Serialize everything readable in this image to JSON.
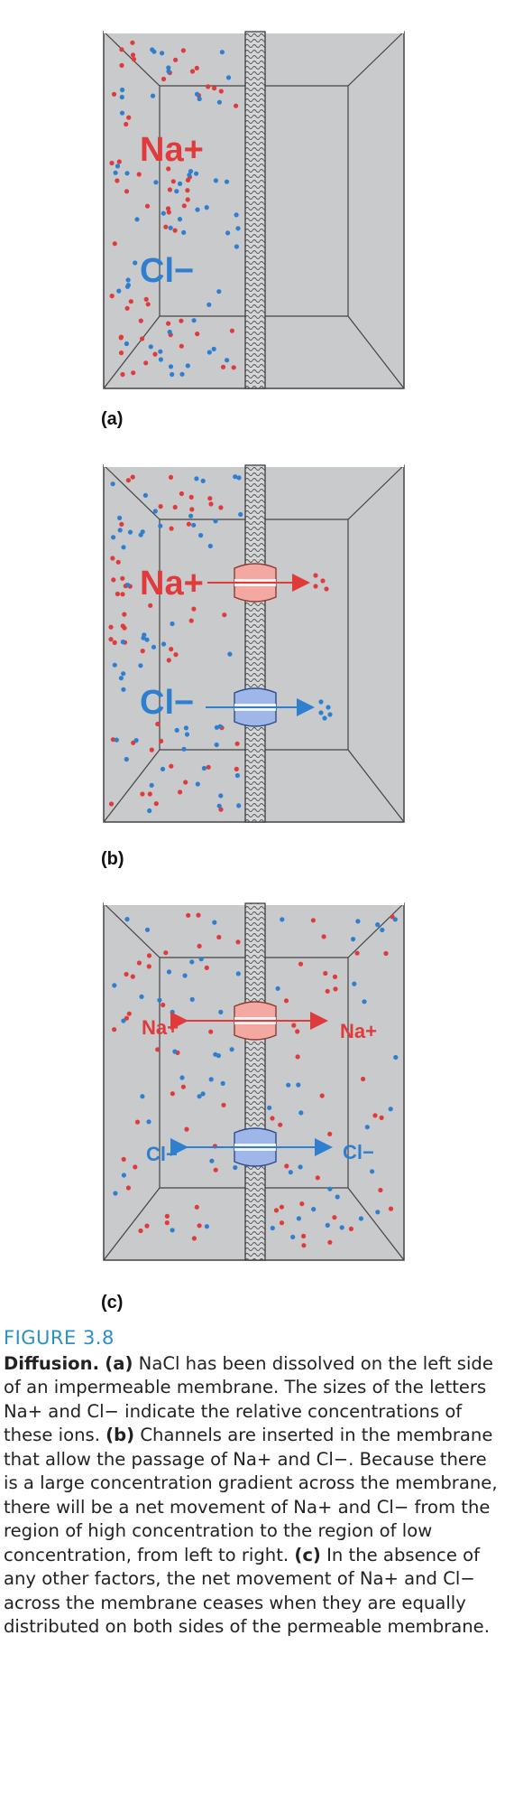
{
  "panels": [
    {
      "label": "(a)",
      "na_label": "Na+",
      "cl_label": "Cl−"
    },
    {
      "label": "(b)",
      "na_label": "Na+",
      "cl_label": "Cl−"
    },
    {
      "label": "(c)",
      "na_left": "Na+",
      "na_right": "Na+",
      "cl_left": "Cl−",
      "cl_right": "Cl−"
    }
  ],
  "colors": {
    "sodium": "#e03a3a",
    "chloride": "#2f7fd0",
    "box_fill": "#c9cacc",
    "caption_title": "#2a8fc4"
  },
  "caption": {
    "title": "FIGURE 3.8",
    "heading": "Diffusion.",
    "a_marker": "(a)",
    "a_text": "NaCl has been dissolved on the left side of an impermeable membrane. The sizes of the letters Na+ and Cl− indicate the relative concentrations of these ions.",
    "b_marker": "(b)",
    "b_text": "Channels are inserted in the membrane that allow the passage of Na+ and Cl−. Because there is a large concentration gradient across the membrane, there will be a net movement of Na+ and Cl− from the region of high concentration to the region of low concentration, from left to right.",
    "c_marker": "(c)",
    "c_text": "In the absence of any other factors, the net movement of Na+ and Cl− across the membrane ceases when they are equally distributed on both sides of the permeable membrane."
  }
}
